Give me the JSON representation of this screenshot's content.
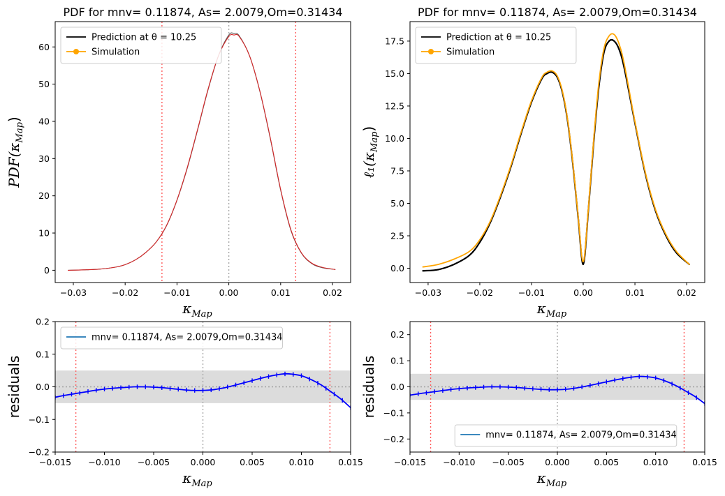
{
  "chart_data": [
    {
      "id": "pdf",
      "type": "line",
      "title": "PDF for mnv= 0.11874, As= 2.0079,Om=0.31434",
      "xlabel": "κ",
      "xlabel_sub": "Map",
      "ylabel": "PDF(κ",
      "ylabel_sub": "Map",
      "ylabel_suffix": ")",
      "xlim": [
        -0.0335,
        0.0235
      ],
      "ylim": [
        -3.3,
        66.8
      ],
      "xticks": [
        -0.03,
        -0.02,
        -0.01,
        0.0,
        0.01,
        0.02
      ],
      "xtick_labels": [
        "−0.03",
        "−0.02",
        "−0.01",
        "0.00",
        "0.01",
        "0.02"
      ],
      "yticks": [
        0,
        10,
        20,
        30,
        40,
        50,
        60
      ],
      "ytick_labels": [
        "0",
        "10",
        "20",
        "30",
        "40",
        "50",
        "60"
      ],
      "vlines_red": [
        -0.0129,
        0.0129
      ],
      "vline_grey": 0.0,
      "legend": {
        "position": "upper-left",
        "entries": [
          {
            "label": "Prediction at θ = 10.25",
            "color": "#000000",
            "marker": false
          },
          {
            "label": "Simulation",
            "color": "#ffa500",
            "marker": true
          }
        ]
      },
      "series": [
        {
          "name": "Prediction",
          "color": "#555555",
          "x": [
            -0.031,
            -0.028,
            -0.025,
            -0.022,
            -0.02,
            -0.018,
            -0.016,
            -0.014,
            -0.012,
            -0.01,
            -0.008,
            -0.006,
            -0.004,
            -0.002,
            0.0,
            0.001,
            0.002,
            0.004,
            0.006,
            0.008,
            0.01,
            0.012,
            0.014,
            0.016,
            0.018,
            0.0205
          ],
          "y": [
            0.0,
            0.1,
            0.3,
            0.8,
            1.5,
            2.8,
            4.8,
            7.6,
            12.0,
            18.8,
            27.5,
            37.8,
            48.5,
            57.6,
            63.2,
            63.6,
            63.0,
            57.6,
            48.0,
            35.4,
            21.5,
            10.6,
            4.6,
            1.8,
            0.7,
            0.2
          ]
        },
        {
          "name": "Simulation",
          "color": "#d62728",
          "x": [
            -0.031,
            -0.028,
            -0.025,
            -0.022,
            -0.02,
            -0.018,
            -0.016,
            -0.014,
            -0.012,
            -0.01,
            -0.008,
            -0.006,
            -0.004,
            -0.002,
            0.0,
            0.001,
            0.002,
            0.004,
            0.006,
            0.008,
            0.01,
            0.012,
            0.014,
            0.016,
            0.018,
            0.0205
          ],
          "y": [
            0.0,
            0.1,
            0.3,
            0.8,
            1.5,
            2.8,
            4.8,
            7.6,
            12.1,
            18.9,
            27.7,
            38.0,
            48.7,
            57.6,
            62.8,
            63.2,
            62.8,
            57.6,
            48.1,
            35.6,
            21.7,
            10.8,
            4.7,
            1.9,
            0.8,
            0.2
          ]
        }
      ]
    },
    {
      "id": "l1",
      "type": "line",
      "title": "PDF for mnv= 0.11874, As= 2.0079,Om=0.31434",
      "xlabel": "κ",
      "xlabel_sub": "Map",
      "ylabel": "ℓ₁(κ",
      "ylabel_sub": "Map",
      "ylabel_suffix": ")",
      "xlim": [
        -0.0335,
        0.0235
      ],
      "ylim": [
        -1.1,
        19.0
      ],
      "xticks": [
        -0.03,
        -0.02,
        -0.01,
        0.0,
        0.01,
        0.02
      ],
      "xtick_labels": [
        "−0.03",
        "−0.02",
        "−0.01",
        "0.00",
        "0.01",
        "0.02"
      ],
      "yticks": [
        0.0,
        2.5,
        5.0,
        7.5,
        10.0,
        12.5,
        15.0,
        17.5
      ],
      "ytick_labels": [
        "0.0",
        "2.5",
        "5.0",
        "7.5",
        "10.0",
        "12.5",
        "15.0",
        "17.5"
      ],
      "legend": {
        "position": "upper-left",
        "entries": [
          {
            "label": "Prediction at θ = 10.25",
            "color": "#000000",
            "marker": false
          },
          {
            "label": "Simulation",
            "color": "#ffa500",
            "marker": true
          }
        ]
      },
      "series": [
        {
          "name": "Prediction",
          "color": "#000000",
          "x": [
            -0.031,
            -0.028,
            -0.025,
            -0.022,
            -0.02,
            -0.018,
            -0.016,
            -0.014,
            -0.012,
            -0.01,
            -0.008,
            -0.007,
            -0.006,
            -0.005,
            -0.004,
            -0.003,
            -0.002,
            -0.001,
            0.0,
            0.001,
            0.002,
            0.003,
            0.004,
            0.005,
            0.006,
            0.007,
            0.008,
            0.01,
            0.012,
            0.014,
            0.016,
            0.018,
            0.0205
          ],
          "y": [
            -0.2,
            -0.1,
            0.3,
            1.0,
            2.0,
            3.5,
            5.5,
            7.8,
            10.4,
            12.8,
            14.6,
            15.0,
            15.1,
            14.7,
            13.5,
            11.3,
            8.0,
            4.0,
            0.3,
            4.5,
            9.6,
            13.9,
            16.6,
            17.5,
            17.5,
            16.8,
            15.3,
            11.2,
            7.3,
            4.4,
            2.5,
            1.2,
            0.3
          ]
        },
        {
          "name": "Simulation",
          "color": "#ffa500",
          "x": [
            -0.031,
            -0.028,
            -0.025,
            -0.022,
            -0.02,
            -0.018,
            -0.016,
            -0.014,
            -0.012,
            -0.01,
            -0.008,
            -0.007,
            -0.006,
            -0.005,
            -0.004,
            -0.003,
            -0.002,
            -0.001,
            0.0,
            0.001,
            0.002,
            0.003,
            0.004,
            0.005,
            0.006,
            0.007,
            0.008,
            0.01,
            0.012,
            0.014,
            0.016,
            0.018,
            0.0205
          ],
          "y": [
            0.1,
            0.3,
            0.7,
            1.3,
            2.2,
            3.6,
            5.6,
            7.9,
            10.5,
            12.9,
            14.7,
            15.1,
            15.2,
            14.8,
            13.6,
            11.4,
            8.1,
            4.1,
            0.5,
            4.6,
            9.8,
            14.2,
            16.9,
            17.9,
            18.0,
            17.2,
            15.6,
            11.3,
            7.4,
            4.5,
            2.6,
            1.3,
            0.3
          ]
        }
      ]
    },
    {
      "id": "res-left",
      "type": "line",
      "xlabel": "κ",
      "xlabel_sub": "Map",
      "ylabel": "residuals",
      "xlim": [
        -0.015,
        0.015
      ],
      "ylim": [
        -0.2,
        0.2
      ],
      "xticks": [
        -0.015,
        -0.01,
        -0.005,
        0.0,
        0.005,
        0.01,
        0.015
      ],
      "xtick_labels": [
        "−0.015",
        "−0.010",
        "−0.005",
        "0.000",
        "0.005",
        "0.010",
        "0.015"
      ],
      "yticks": [
        -0.2,
        -0.1,
        0.0,
        0.1,
        0.2
      ],
      "ytick_labels": [
        "−0.2",
        "−0.1",
        "0.0",
        "0.1",
        "0.2"
      ],
      "band": [
        -0.05,
        0.05
      ],
      "hline_dotted": 0.0,
      "vlines_red": [
        -0.0129,
        0.0129
      ],
      "vline_grey": 0.0,
      "legend": {
        "position": "upper-left",
        "entries": [
          {
            "label": "mnv= 0.11874, As= 2.0079,Om=0.31434",
            "color": "#1f77b4",
            "marker": false
          }
        ]
      },
      "series": [
        {
          "name": "residual",
          "color": "#0000ff",
          "x": [
            -0.015,
            -0.014,
            -0.013,
            -0.012,
            -0.011,
            -0.01,
            -0.009,
            -0.008,
            -0.007,
            -0.006,
            -0.005,
            -0.004,
            -0.003,
            -0.002,
            -0.001,
            0.0,
            0.001,
            0.002,
            0.003,
            0.004,
            0.005,
            0.006,
            0.007,
            0.008,
            0.0085,
            0.009,
            0.01,
            0.011,
            0.012,
            0.013,
            0.014,
            0.015
          ],
          "y": [
            -0.032,
            -0.026,
            -0.021,
            -0.016,
            -0.011,
            -0.007,
            -0.004,
            -0.002,
            0.0,
            0.0,
            -0.001,
            -0.003,
            -0.006,
            -0.009,
            -0.011,
            -0.011,
            -0.009,
            -0.004,
            0.003,
            0.011,
            0.019,
            0.027,
            0.034,
            0.039,
            0.04,
            0.039,
            0.034,
            0.022,
            0.006,
            -0.015,
            -0.037,
            -0.064
          ]
        }
      ]
    },
    {
      "id": "res-right",
      "type": "line",
      "xlabel": "κ",
      "xlabel_sub": "Map",
      "ylabel": "residuals",
      "xlim": [
        -0.015,
        0.015
      ],
      "ylim": [
        -0.25,
        0.25
      ],
      "xticks": [
        -0.015,
        -0.01,
        -0.005,
        0.0,
        0.005,
        0.01,
        0.015
      ],
      "xtick_labels": [
        "−0.015",
        "−0.010",
        "−0.005",
        "0.000",
        "0.005",
        "0.010",
        "0.015"
      ],
      "yticks": [
        -0.2,
        -0.1,
        0.0,
        0.1,
        0.2
      ],
      "ytick_labels": [
        "−0.2",
        "−0.1",
        "0.0",
        "0.1",
        "0.2"
      ],
      "band": [
        -0.05,
        0.05
      ],
      "hline_dotted": 0.0,
      "vlines_red": [
        -0.0129,
        0.0129
      ],
      "vline_grey": 0.0,
      "legend": {
        "position": "lower-center",
        "entries": [
          {
            "label": "mnv= 0.11874, As= 2.0079,Om=0.31434",
            "color": "#1f77b4",
            "marker": false
          }
        ]
      },
      "series": [
        {
          "name": "residual",
          "color": "#0000ff",
          "x": [
            -0.015,
            -0.014,
            -0.013,
            -0.012,
            -0.011,
            -0.01,
            -0.009,
            -0.008,
            -0.007,
            -0.006,
            -0.005,
            -0.004,
            -0.003,
            -0.002,
            -0.001,
            0.0,
            0.001,
            0.002,
            0.003,
            0.004,
            0.005,
            0.006,
            0.007,
            0.008,
            0.0085,
            0.009,
            0.01,
            0.011,
            0.012,
            0.013,
            0.014,
            0.015
          ],
          "y": [
            -0.032,
            -0.026,
            -0.021,
            -0.016,
            -0.011,
            -0.007,
            -0.004,
            -0.002,
            0.0,
            0.0,
            -0.001,
            -0.003,
            -0.006,
            -0.009,
            -0.011,
            -0.011,
            -0.009,
            -0.004,
            0.003,
            0.011,
            0.019,
            0.027,
            0.034,
            0.039,
            0.04,
            0.039,
            0.034,
            0.022,
            0.006,
            -0.015,
            -0.037,
            -0.064
          ]
        }
      ]
    }
  ]
}
